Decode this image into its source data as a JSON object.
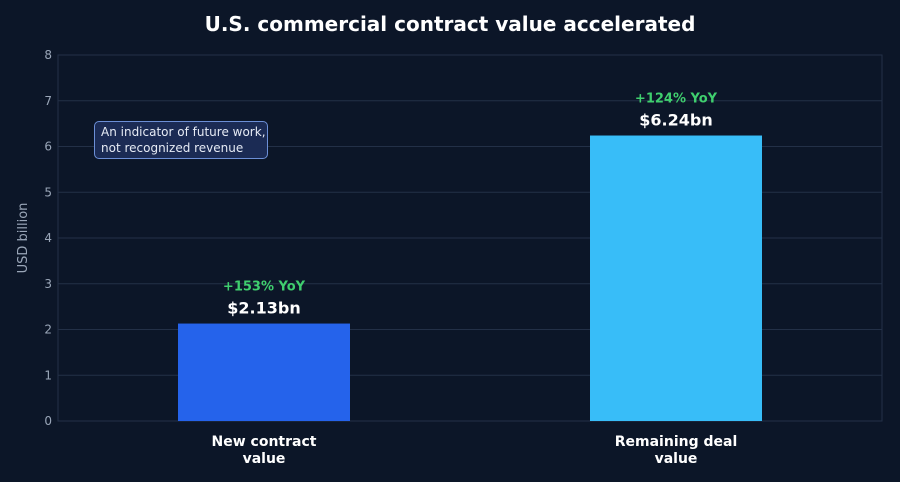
{
  "chart_data": {
    "type": "bar",
    "title": "U.S. commercial contract value accelerated",
    "xlabel": "",
    "ylabel": "USD billion",
    "ylim": [
      0,
      8
    ],
    "yticks": [
      0,
      1,
      2,
      3,
      4,
      5,
      6,
      7,
      8
    ],
    "grid": true,
    "categories": [
      [
        "New contract",
        "value"
      ],
      [
        "Remaining deal",
        "value"
      ]
    ],
    "values": [
      2.13,
      6.24
    ],
    "value_labels": [
      "$2.13bn",
      "$6.24bn"
    ],
    "change_labels": [
      "+153% YoY",
      "+124% YoY"
    ],
    "colors": [
      "#2563eb",
      "#38bdf8"
    ],
    "annotation": {
      "lines": [
        "An indicator of future work,",
        "not recognized revenue"
      ]
    }
  },
  "colors": {
    "background": "#0c1628",
    "gridline": "#233047",
    "change_text": "#3fcf6e"
  }
}
